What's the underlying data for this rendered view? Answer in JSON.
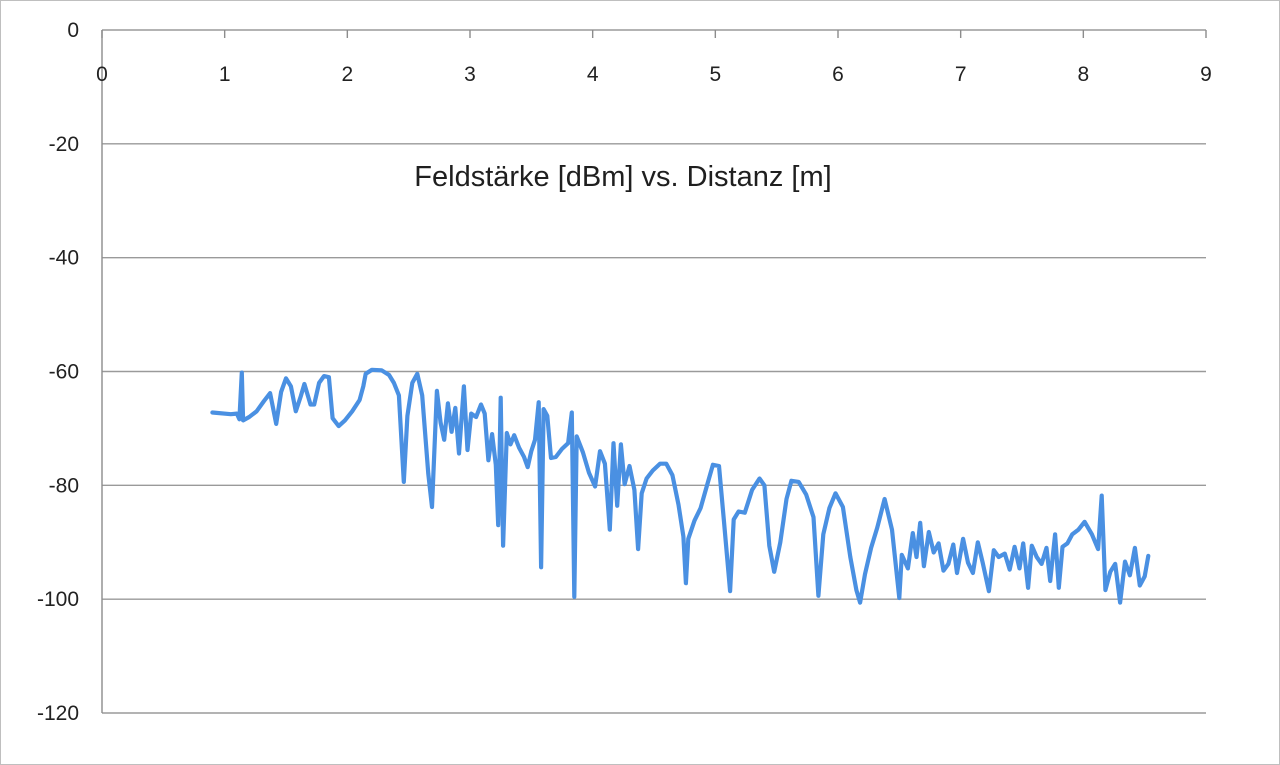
{
  "chart_data": {
    "type": "line",
    "title": "Feldstärke [dBm] vs. Distanz [m]",
    "xlabel": "",
    "ylabel": "",
    "xlim": [
      0,
      9
    ],
    "ylim": [
      -120,
      0
    ],
    "x_ticks": [
      0,
      1,
      2,
      3,
      4,
      5,
      6,
      7,
      8,
      9
    ],
    "y_ticks": [
      0,
      -20,
      -40,
      -60,
      -80,
      -100,
      -120
    ],
    "x_tick_labels": [
      "0",
      "1",
      "2",
      "3",
      "4",
      "5",
      "6",
      "7",
      "8",
      "9"
    ],
    "y_tick_labels": [
      "0",
      "-20",
      "-40",
      "-60",
      "-80",
      "-100",
      "-120"
    ],
    "x_axis_position": "top",
    "grid": "horizontal",
    "legend": "none",
    "series": [
      {
        "color": "#4a90e2",
        "points": [
          [
            0.9,
            -67.2
          ],
          [
            1.05,
            -67.5
          ],
          [
            1.1,
            -67.4
          ],
          [
            1.12,
            -68.4
          ],
          [
            1.14,
            -60.2
          ],
          [
            1.15,
            -68.6
          ],
          [
            1.2,
            -68.0
          ],
          [
            1.26,
            -67.0
          ],
          [
            1.32,
            -65.2
          ],
          [
            1.37,
            -63.8
          ],
          [
            1.42,
            -69.2
          ],
          [
            1.46,
            -63.6
          ],
          [
            1.5,
            -61.2
          ],
          [
            1.54,
            -62.6
          ],
          [
            1.58,
            -67.0
          ],
          [
            1.62,
            -64.4
          ],
          [
            1.65,
            -62.2
          ],
          [
            1.7,
            -65.8
          ],
          [
            1.73,
            -65.8
          ],
          [
            1.77,
            -62.0
          ],
          [
            1.81,
            -60.8
          ],
          [
            1.85,
            -61.0
          ],
          [
            1.88,
            -68.2
          ],
          [
            1.93,
            -69.6
          ],
          [
            1.98,
            -68.6
          ],
          [
            2.04,
            -67.0
          ],
          [
            2.1,
            -65.0
          ],
          [
            2.13,
            -62.6
          ],
          [
            2.15,
            -60.4
          ],
          [
            2.2,
            -59.7
          ],
          [
            2.28,
            -59.8
          ],
          [
            2.34,
            -60.6
          ],
          [
            2.38,
            -62.0
          ],
          [
            2.42,
            -64.2
          ],
          [
            2.46,
            -79.4
          ],
          [
            2.49,
            -67.8
          ],
          [
            2.53,
            -62.0
          ],
          [
            2.57,
            -60.4
          ],
          [
            2.61,
            -64.2
          ],
          [
            2.66,
            -78.0
          ],
          [
            2.69,
            -83.8
          ],
          [
            2.73,
            -63.4
          ],
          [
            2.76,
            -69.0
          ],
          [
            2.79,
            -72.0
          ],
          [
            2.82,
            -65.6
          ],
          [
            2.85,
            -70.6
          ],
          [
            2.88,
            -66.4
          ],
          [
            2.91,
            -74.4
          ],
          [
            2.95,
            -62.6
          ],
          [
            2.98,
            -73.8
          ],
          [
            3.01,
            -67.4
          ],
          [
            3.05,
            -68.0
          ],
          [
            3.09,
            -65.8
          ],
          [
            3.12,
            -67.4
          ],
          [
            3.15,
            -75.6
          ],
          [
            3.18,
            -71.0
          ],
          [
            3.21,
            -76.4
          ],
          [
            3.23,
            -87.0
          ],
          [
            3.25,
            -64.6
          ],
          [
            3.27,
            -90.6
          ],
          [
            3.3,
            -70.8
          ],
          [
            3.33,
            -72.8
          ],
          [
            3.36,
            -71.2
          ],
          [
            3.4,
            -73.4
          ],
          [
            3.44,
            -75.0
          ],
          [
            3.47,
            -76.8
          ],
          [
            3.5,
            -74.0
          ],
          [
            3.53,
            -72.0
          ],
          [
            3.56,
            -65.4
          ],
          [
            3.58,
            -94.4
          ],
          [
            3.6,
            -66.6
          ],
          [
            3.63,
            -67.8
          ],
          [
            3.66,
            -75.2
          ],
          [
            3.7,
            -75.0
          ],
          [
            3.75,
            -73.6
          ],
          [
            3.8,
            -72.6
          ],
          [
            3.83,
            -67.2
          ],
          [
            3.85,
            -99.6
          ],
          [
            3.87,
            -71.4
          ],
          [
            3.92,
            -74.2
          ],
          [
            3.97,
            -77.8
          ],
          [
            4.02,
            -80.2
          ],
          [
            4.06,
            -74.0
          ],
          [
            4.1,
            -76.2
          ],
          [
            4.14,
            -87.8
          ],
          [
            4.17,
            -72.6
          ],
          [
            4.2,
            -83.6
          ],
          [
            4.23,
            -72.8
          ],
          [
            4.26,
            -79.8
          ],
          [
            4.3,
            -76.6
          ],
          [
            4.34,
            -80.8
          ],
          [
            4.37,
            -91.2
          ],
          [
            4.4,
            -81.4
          ],
          [
            4.44,
            -78.8
          ],
          [
            4.49,
            -77.4
          ],
          [
            4.55,
            -76.2
          ],
          [
            4.6,
            -76.2
          ],
          [
            4.65,
            -78.2
          ],
          [
            4.7,
            -83.4
          ],
          [
            4.74,
            -89.0
          ],
          [
            4.76,
            -97.2
          ],
          [
            4.78,
            -89.4
          ],
          [
            4.83,
            -86.2
          ],
          [
            4.88,
            -84.0
          ],
          [
            4.93,
            -80.2
          ],
          [
            4.98,
            -76.4
          ],
          [
            5.03,
            -76.6
          ],
          [
            5.07,
            -86.2
          ],
          [
            5.12,
            -98.6
          ],
          [
            5.15,
            -86.0
          ],
          [
            5.19,
            -84.6
          ],
          [
            5.24,
            -84.8
          ],
          [
            5.3,
            -80.8
          ],
          [
            5.36,
            -78.8
          ],
          [
            5.4,
            -80.0
          ],
          [
            5.44,
            -90.6
          ],
          [
            5.48,
            -95.2
          ],
          [
            5.53,
            -90.0
          ],
          [
            5.58,
            -82.4
          ],
          [
            5.62,
            -79.2
          ],
          [
            5.68,
            -79.4
          ],
          [
            5.74,
            -81.6
          ],
          [
            5.8,
            -85.6
          ],
          [
            5.84,
            -99.4
          ],
          [
            5.88,
            -88.6
          ],
          [
            5.93,
            -84.0
          ],
          [
            5.98,
            -81.4
          ],
          [
            6.04,
            -83.8
          ],
          [
            6.1,
            -92.6
          ],
          [
            6.15,
            -98.4
          ],
          [
            6.18,
            -100.6
          ],
          [
            6.22,
            -95.6
          ],
          [
            6.27,
            -91.0
          ],
          [
            6.32,
            -87.4
          ],
          [
            6.38,
            -82.4
          ],
          [
            6.44,
            -87.8
          ],
          [
            6.5,
            -99.8
          ],
          [
            6.52,
            -92.2
          ],
          [
            6.57,
            -94.6
          ],
          [
            6.61,
            -88.4
          ],
          [
            6.64,
            -92.6
          ],
          [
            6.67,
            -86.6
          ],
          [
            6.7,
            -94.2
          ],
          [
            6.74,
            -88.2
          ],
          [
            6.78,
            -91.8
          ],
          [
            6.82,
            -90.2
          ],
          [
            6.86,
            -95.0
          ],
          [
            6.9,
            -93.8
          ],
          [
            6.94,
            -90.4
          ],
          [
            6.97,
            -95.4
          ],
          [
            7.02,
            -89.4
          ],
          [
            7.06,
            -93.6
          ],
          [
            7.1,
            -95.4
          ],
          [
            7.14,
            -90.0
          ],
          [
            7.18,
            -93.6
          ],
          [
            7.23,
            -98.6
          ],
          [
            7.27,
            -91.4
          ],
          [
            7.31,
            -92.6
          ],
          [
            7.36,
            -92.0
          ],
          [
            7.4,
            -94.8
          ],
          [
            7.44,
            -90.8
          ],
          [
            7.48,
            -94.6
          ],
          [
            7.51,
            -90.2
          ],
          [
            7.55,
            -98.0
          ],
          [
            7.58,
            -90.6
          ],
          [
            7.62,
            -92.6
          ],
          [
            7.66,
            -93.8
          ],
          [
            7.7,
            -91.0
          ],
          [
            7.73,
            -96.8
          ],
          [
            7.77,
            -88.6
          ],
          [
            7.8,
            -98.0
          ],
          [
            7.83,
            -90.8
          ],
          [
            7.87,
            -90.2
          ],
          [
            7.91,
            -88.6
          ],
          [
            7.96,
            -87.8
          ],
          [
            8.01,
            -86.4
          ],
          [
            8.07,
            -88.6
          ],
          [
            8.12,
            -91.2
          ],
          [
            8.15,
            -81.8
          ],
          [
            8.18,
            -98.4
          ],
          [
            8.22,
            -95.2
          ],
          [
            8.26,
            -93.8
          ],
          [
            8.3,
            -100.6
          ],
          [
            8.34,
            -93.4
          ],
          [
            8.38,
            -95.8
          ],
          [
            8.42,
            -91.0
          ],
          [
            8.46,
            -97.6
          ],
          [
            8.5,
            -96.0
          ],
          [
            8.53,
            -92.4
          ]
        ]
      }
    ]
  }
}
